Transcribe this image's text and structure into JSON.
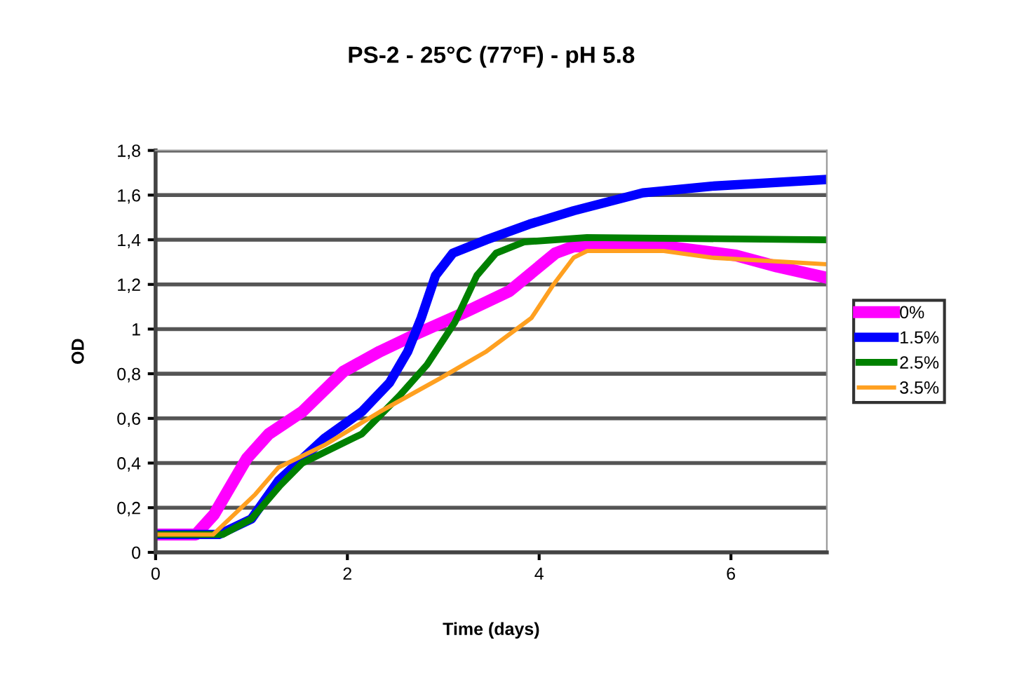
{
  "chart_data": {
    "type": "line",
    "title": "PS-2 - 25°C (77°F) - pH 5.8",
    "xlabel": "Time (days)",
    "ylabel": "OD",
    "xlim": [
      0,
      7
    ],
    "xticks": [
      0,
      2,
      4,
      6
    ],
    "ylim": [
      0,
      1.8
    ],
    "yticks": [
      0,
      {
        "value": 0.2,
        "label": "0,2"
      },
      {
        "value": 0.4,
        "label": "0,4"
      },
      {
        "value": 0.6,
        "label": "0,6"
      },
      {
        "value": 0.8,
        "label": "0,8"
      },
      1,
      {
        "value": 1.2,
        "label": "1,2"
      },
      {
        "value": 1.4,
        "label": "1,4"
      },
      {
        "value": 1.6,
        "label": "1,6"
      },
      {
        "value": 1.8,
        "label": "1,8"
      }
    ],
    "grid": "y",
    "legend": "right",
    "marker": "none",
    "line_style": "solid",
    "series": [
      {
        "name": "0%",
        "color": "#ff00ff",
        "x": [
          0,
          0.42,
          0.61,
          0.95,
          1.18,
          1.53,
          1.96,
          2.34,
          2.73,
          3.2,
          3.69,
          4.17,
          4.36,
          5.32,
          6.05,
          6.48,
          7
        ],
        "values": [
          0.08,
          0.08,
          0.17,
          0.42,
          0.53,
          0.63,
          0.81,
          0.9,
          0.98,
          1.07,
          1.17,
          1.34,
          1.37,
          1.37,
          1.33,
          1.28,
          1.23
        ]
      },
      {
        "name": "1.5%",
        "color": "#0000ff",
        "x": [
          0,
          0.66,
          1.0,
          1.28,
          1.76,
          2.15,
          2.44,
          2.63,
          2.77,
          2.92,
          3.1,
          3.45,
          3.9,
          4.36,
          5.08,
          5.8,
          7
        ],
        "values": [
          0.08,
          0.08,
          0.15,
          0.32,
          0.51,
          0.63,
          0.76,
          0.9,
          1.05,
          1.24,
          1.34,
          1.4,
          1.47,
          1.53,
          1.61,
          1.64,
          1.67
        ]
      },
      {
        "name": "2.5%",
        "color": "#008000",
        "x": [
          0,
          0.7,
          1.0,
          1.3,
          1.53,
          2.15,
          2.54,
          2.83,
          3.12,
          3.35,
          3.55,
          3.84,
          4.5,
          7
        ],
        "values": [
          0.08,
          0.08,
          0.15,
          0.3,
          0.4,
          0.53,
          0.7,
          0.84,
          1.03,
          1.24,
          1.34,
          1.39,
          1.41,
          1.4
        ]
      },
      {
        "name": "3.5%",
        "color": "#ffa020",
        "x": [
          0,
          0.6,
          1.04,
          1.28,
          1.76,
          2.34,
          2.97,
          3.45,
          3.92,
          4.15,
          4.36,
          4.5,
          5.3,
          5.8,
          7
        ],
        "values": [
          0.08,
          0.08,
          0.26,
          0.38,
          0.48,
          0.63,
          0.78,
          0.9,
          1.05,
          1.2,
          1.32,
          1.35,
          1.35,
          1.32,
          1.29
        ]
      }
    ]
  }
}
